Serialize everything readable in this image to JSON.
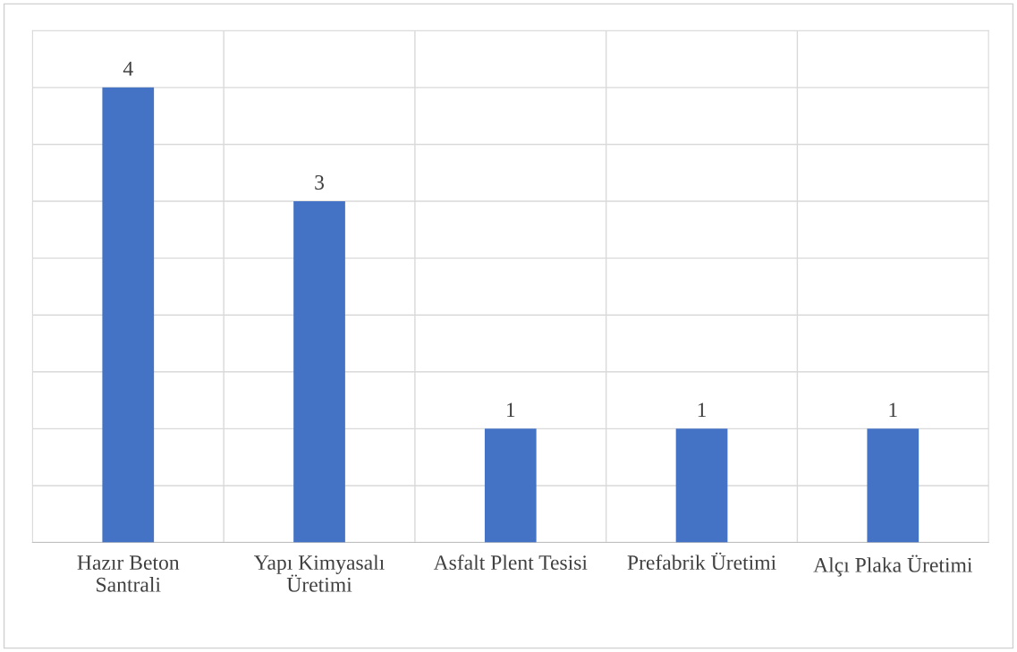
{
  "chart_data": {
    "type": "bar",
    "categories": [
      "Hazır Beton\nSantrali",
      "Yapı Kimyasalı\nÜretimi",
      "Asfalt Plent Tesisi",
      "Prefabrik Üretimi",
      "Alçı Plaka Üretimi"
    ],
    "values": [
      4,
      3,
      1,
      1,
      1
    ],
    "color": "#4472c4",
    "ylim": [
      0,
      4.5
    ],
    "yticks": [
      {
        "value": 0,
        "label": null
      },
      {
        "value": 0.5,
        "label": null
      },
      {
        "value": 1,
        "label": null
      },
      {
        "value": 1.5,
        "label": null
      },
      {
        "value": 2,
        "label": null
      },
      {
        "value": 2.5,
        "label": null
      },
      {
        "value": 3,
        "label": null
      },
      {
        "value": 3.5,
        "label": null
      },
      {
        "value": 4,
        "label": null
      },
      {
        "value": 4.5,
        "label": null
      }
    ],
    "tick_labels": "x",
    "grid": true,
    "data_labels": true
  }
}
